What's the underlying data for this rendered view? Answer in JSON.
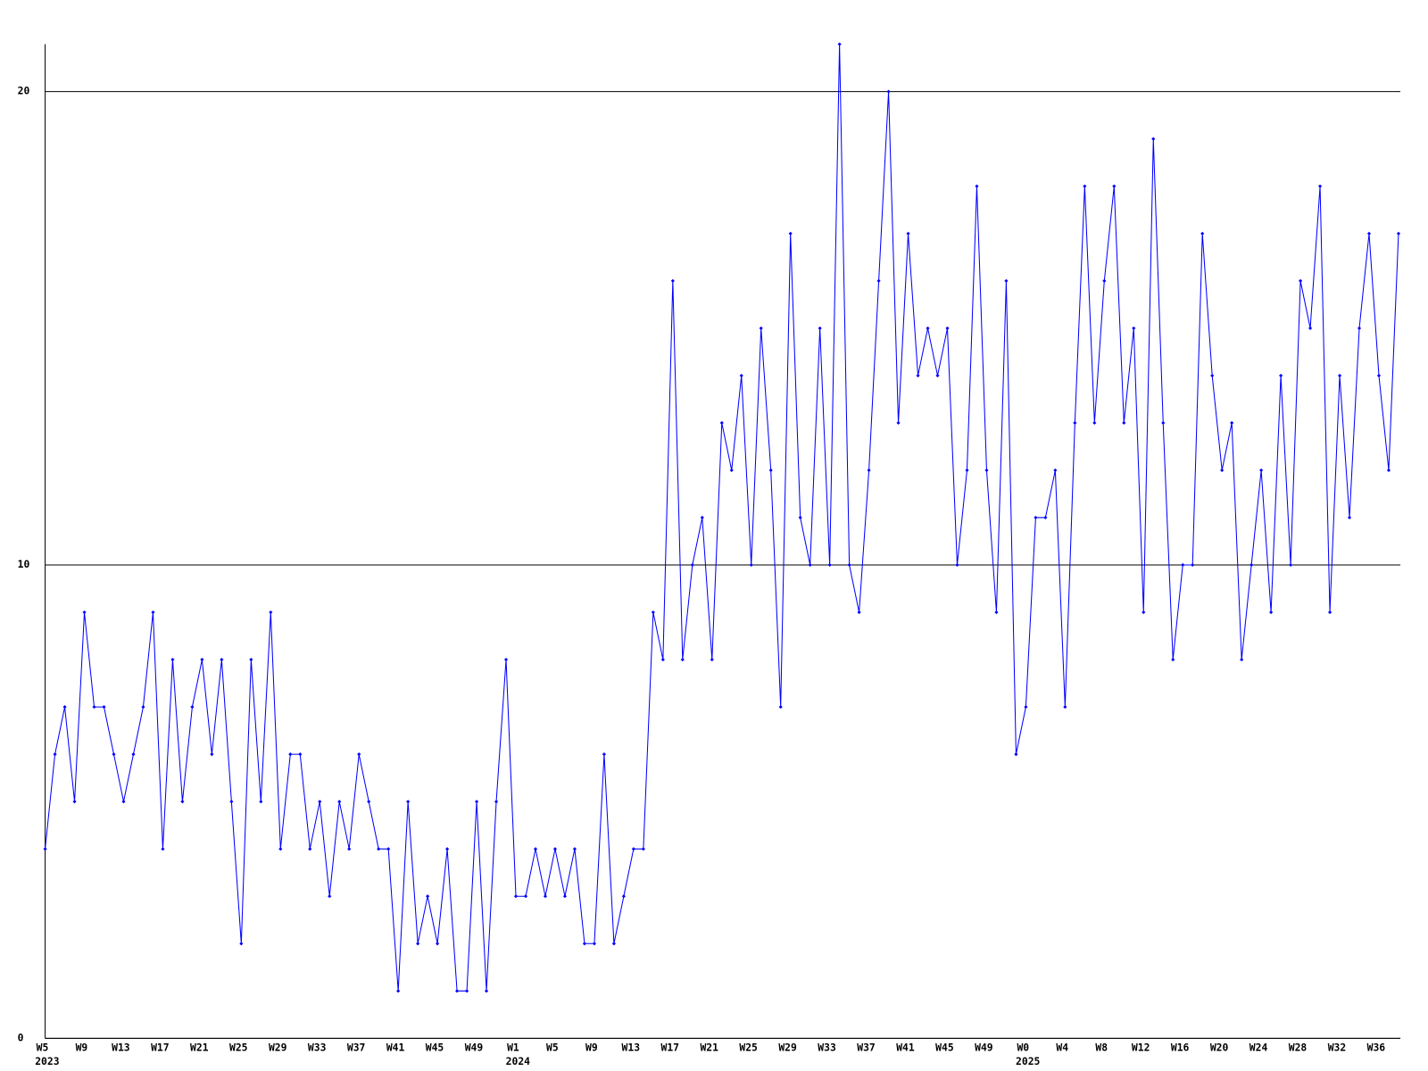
{
  "chart_data": {
    "type": "line",
    "color": "#0000ff",
    "categories": [
      "W5",
      null,
      null,
      null,
      "W9",
      null,
      null,
      null,
      "W13",
      null,
      null,
      null,
      "W17",
      null,
      null,
      null,
      "W21",
      null,
      null,
      null,
      "W25",
      null,
      null,
      null,
      "W29",
      null,
      null,
      null,
      "W33",
      null,
      null,
      null,
      "W37",
      null,
      null,
      null,
      "W41",
      null,
      null,
      null,
      "W45",
      null,
      null,
      null,
      "W49",
      null,
      null,
      null,
      "W1",
      null,
      null,
      null,
      "W5",
      null,
      null,
      null,
      "W9",
      null,
      null,
      null,
      "W13",
      null,
      null,
      null,
      "W17",
      null,
      null,
      null,
      "W21",
      null,
      null,
      null,
      "W25",
      null,
      null,
      null,
      "W29",
      null,
      null,
      null,
      "W33",
      null,
      null,
      null,
      "W37",
      null,
      null,
      null,
      "W41",
      null,
      null,
      null,
      "W45",
      null,
      null,
      null,
      "W49",
      null,
      null,
      null,
      "W0",
      null,
      null,
      null,
      "W4",
      null,
      null,
      null,
      "W8",
      null,
      null,
      null,
      "W12",
      null,
      null,
      null,
      "W16",
      null,
      null,
      null,
      "W20",
      null,
      null,
      null,
      "W24",
      null,
      null,
      null,
      "W28",
      null,
      null,
      null,
      "W32",
      null,
      null,
      null,
      "W36",
      null,
      null
    ],
    "category_years": [
      "2023",
      null,
      null,
      null,
      null,
      null,
      null,
      null,
      null,
      null,
      null,
      null,
      null,
      null,
      null,
      null,
      null,
      null,
      null,
      null,
      null,
      null,
      null,
      null,
      null,
      null,
      null,
      null,
      null,
      null,
      null,
      null,
      null,
      null,
      null,
      null,
      null,
      null,
      null,
      null,
      null,
      null,
      null,
      null,
      null,
      null,
      null,
      null,
      "2024",
      null,
      null,
      null,
      null,
      null,
      null,
      null,
      null,
      null,
      null,
      null,
      null,
      null,
      null,
      null,
      null,
      null,
      null,
      null,
      null,
      null,
      null,
      null,
      null,
      null,
      null,
      null,
      null,
      null,
      null,
      null,
      null,
      null,
      null,
      null,
      null,
      null,
      null,
      null,
      null,
      null,
      null,
      null,
      null,
      null,
      null,
      null,
      null,
      null,
      null,
      null,
      "2025",
      null,
      null,
      null,
      null,
      null,
      null,
      null,
      null,
      null,
      null,
      null,
      null,
      null,
      null,
      null,
      null,
      null,
      null,
      null,
      null,
      null,
      null,
      null,
      null,
      null,
      null,
      null,
      null,
      null,
      null,
      null,
      null,
      null,
      null,
      null,
      null,
      null,
      null
    ],
    "values": [
      4,
      6,
      7,
      5,
      9,
      7,
      7,
      6,
      5,
      6,
      7,
      9,
      4,
      8,
      5,
      7,
      8,
      6,
      8,
      5,
      2,
      8,
      5,
      9,
      4,
      6,
      6,
      4,
      5,
      3,
      5,
      4,
      6,
      5,
      4,
      4,
      1,
      5,
      2,
      3,
      2,
      4,
      1,
      1,
      5,
      1,
      5,
      8,
      3,
      3,
      4,
      3,
      4,
      3,
      4,
      2,
      2,
      6,
      2,
      3,
      4,
      4,
      9,
      8,
      16,
      8,
      10,
      11,
      8,
      13,
      12,
      14,
      10,
      15,
      12,
      7,
      17,
      11,
      10,
      15,
      10,
      21,
      10,
      9,
      12,
      16,
      20,
      13,
      17,
      14,
      15,
      14,
      15,
      10,
      12,
      18,
      12,
      9,
      16,
      6,
      7,
      11,
      11,
      12,
      7,
      13,
      18,
      13,
      16,
      18,
      13,
      15,
      9,
      19,
      13,
      8,
      10,
      10,
      17,
      14,
      12,
      13,
      8,
      10,
      12,
      9,
      14,
      10,
      16,
      15,
      18,
      9,
      14,
      11,
      15,
      17,
      14,
      12,
      17
    ],
    "ylim": [
      0,
      21
    ],
    "yticks": [
      0,
      10,
      20
    ],
    "grid": true
  }
}
